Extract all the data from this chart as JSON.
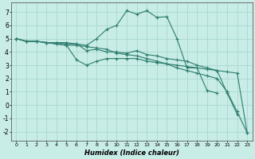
{
  "xlabel": "Humidex (Indice chaleur)",
  "xlim": [
    -0.5,
    23.5
  ],
  "ylim": [
    -2.7,
    7.7
  ],
  "xticks": [
    0,
    1,
    2,
    3,
    4,
    5,
    6,
    7,
    8,
    9,
    10,
    11,
    12,
    13,
    14,
    15,
    16,
    17,
    18,
    19,
    20,
    21,
    22,
    23
  ],
  "yticks": [
    -2,
    -1,
    0,
    1,
    2,
    3,
    4,
    5,
    6,
    7
  ],
  "background_color": "#c8ece6",
  "grid_color": "#a8d8d0",
  "line_color": "#2e7d6e",
  "lines": [
    {
      "x": [
        0,
        1,
        2,
        3,
        4,
        5,
        6,
        7,
        8,
        9,
        10,
        11,
        12,
        13,
        14,
        15,
        16,
        17,
        18,
        19,
        20
      ],
      "y": [
        5.0,
        4.8,
        4.8,
        4.7,
        4.7,
        4.7,
        4.6,
        4.5,
        5.0,
        5.7,
        6.0,
        7.1,
        6.85,
        7.1,
        6.6,
        6.65,
        5.0,
        2.8,
        2.8,
        1.1,
        0.9
      ]
    },
    {
      "x": [
        0,
        1,
        2,
        3,
        4,
        5,
        6,
        7,
        8,
        9,
        10,
        11,
        12,
        13,
        14,
        15,
        16,
        17,
        18,
        19,
        20,
        21,
        22
      ],
      "y": [
        5.0,
        4.8,
        4.8,
        4.7,
        4.7,
        4.6,
        4.6,
        4.1,
        4.2,
        4.0,
        4.0,
        3.9,
        4.1,
        3.8,
        3.7,
        3.5,
        3.4,
        3.3,
        3.0,
        2.8,
        2.6,
        0.9,
        -0.7
      ]
    },
    {
      "x": [
        0,
        1,
        2,
        3,
        4,
        5,
        6,
        7,
        8,
        9,
        10,
        11,
        12,
        13,
        14,
        15,
        16,
        17,
        18,
        19,
        20,
        21,
        22,
        23
      ],
      "y": [
        5.0,
        4.8,
        4.8,
        4.7,
        4.6,
        4.5,
        3.4,
        3.0,
        3.3,
        3.5,
        3.5,
        3.5,
        3.5,
        3.3,
        3.2,
        3.1,
        3.0,
        2.9,
        2.8,
        2.7,
        2.6,
        2.5,
        2.4,
        -2.1
      ]
    },
    {
      "x": [
        0,
        1,
        2,
        3,
        4,
        5,
        6,
        7,
        8,
        9,
        10,
        11,
        12,
        13,
        14,
        15,
        16,
        17,
        18,
        19,
        20,
        21,
        22,
        23
      ],
      "y": [
        5.0,
        4.8,
        4.8,
        4.7,
        4.6,
        4.5,
        4.5,
        4.4,
        4.3,
        4.2,
        3.9,
        3.8,
        3.7,
        3.5,
        3.3,
        3.1,
        2.8,
        2.6,
        2.4,
        2.2,
        2.0,
        1.0,
        -0.5,
        -2.1
      ]
    }
  ]
}
